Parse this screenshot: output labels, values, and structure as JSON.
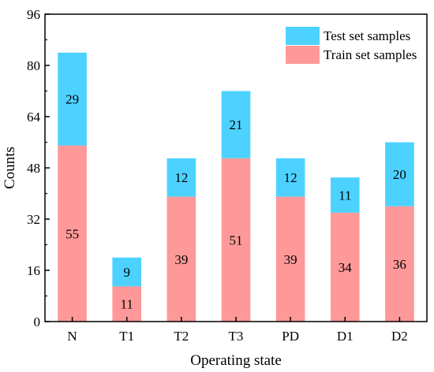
{
  "chart_data": {
    "type": "bar",
    "stacked": true,
    "categories": [
      "N",
      "T1",
      "T2",
      "T3",
      "PD",
      "D1",
      "D2"
    ],
    "series": [
      {
        "name": "Train set samples",
        "values": [
          55,
          11,
          39,
          51,
          39,
          34,
          36
        ],
        "color": "#ff9999"
      },
      {
        "name": "Test set samples",
        "values": [
          29,
          9,
          12,
          21,
          12,
          11,
          20
        ],
        "color": "#4dd2ff"
      }
    ],
    "title": "",
    "xlabel": "Operating state",
    "ylabel": "Counts",
    "ylim": [
      0,
      96
    ],
    "yticks": [
      "0",
      "16",
      "32",
      "48",
      "64",
      "80",
      "96"
    ],
    "grid": false,
    "legend": {
      "position": "top-right",
      "order": [
        "Test set samples",
        "Train set samples"
      ]
    }
  }
}
